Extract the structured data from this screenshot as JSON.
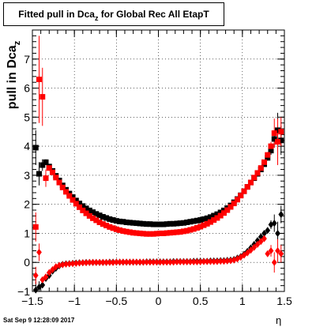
{
  "chart_data": {
    "type": "scatter",
    "title": {
      "main": "Fitted pull in Dca",
      "sub": "z",
      "rest": " for Global Rec All EtapT"
    },
    "ylabel": {
      "main": "pull in Dca",
      "sub": "z"
    },
    "xlabel": "η",
    "timestamp": "Sat Sep  9 12:28:09 2017",
    "xlim": [
      -1.5,
      1.5
    ],
    "ylim": [
      -1,
      8
    ],
    "x_ticks": [
      -1.5,
      -1,
      -0.5,
      0,
      0.5,
      1,
      1.5
    ],
    "x_tick_labels": [
      "−1.5",
      "−1",
      "−0.5",
      "0",
      "0.5",
      "1",
      "1.5"
    ],
    "y_ticks": [
      -1,
      0,
      1,
      2,
      3,
      4,
      5,
      6,
      7
    ],
    "y_tick_labels": [
      "−1",
      "0",
      "1",
      "2",
      "3",
      "4",
      "5",
      "6",
      "7"
    ],
    "grid": true,
    "colors": {
      "black_series": "#000000",
      "red_series": "#ff0000",
      "frame": "#000000",
      "grid": "#000000"
    },
    "series": [
      {
        "marker": "square",
        "color": "#000000",
        "x": [
          -1.46,
          -1.42,
          -1.38,
          -1.34,
          -1.3,
          -1.26,
          -1.22,
          -1.18,
          -1.14,
          -1.1,
          -1.06,
          -1.02,
          -0.98,
          -0.94,
          -0.9,
          -0.86,
          -0.82,
          -0.78,
          -0.74,
          -0.7,
          -0.66,
          -0.62,
          -0.58,
          -0.54,
          -0.5,
          -0.46,
          -0.42,
          -0.38,
          -0.34,
          -0.3,
          -0.26,
          -0.22,
          -0.18,
          -0.14,
          -0.1,
          -0.06,
          -0.02,
          0.02,
          0.06,
          0.1,
          0.14,
          0.18,
          0.22,
          0.26,
          0.3,
          0.34,
          0.38,
          0.42,
          0.46,
          0.5,
          0.54,
          0.58,
          0.62,
          0.66,
          0.7,
          0.74,
          0.78,
          0.82,
          0.86,
          0.9,
          0.94,
          0.98,
          1.02,
          1.06,
          1.1,
          1.14,
          1.18,
          1.22,
          1.26,
          1.3,
          1.34,
          1.38,
          1.42,
          1.46
        ],
        "y": [
          3.95,
          3.05,
          3.35,
          3.45,
          3.3,
          3.15,
          2.98,
          2.82,
          2.65,
          2.5,
          2.37,
          2.25,
          2.13,
          2.03,
          1.94,
          1.86,
          1.79,
          1.73,
          1.67,
          1.62,
          1.57,
          1.53,
          1.49,
          1.46,
          1.43,
          1.41,
          1.4,
          1.38,
          1.37,
          1.36,
          1.35,
          1.34,
          1.33,
          1.32,
          1.32,
          1.31,
          1.31,
          1.31,
          1.31,
          1.32,
          1.33,
          1.33,
          1.34,
          1.35,
          1.36,
          1.38,
          1.4,
          1.42,
          1.44,
          1.46,
          1.49,
          1.52,
          1.56,
          1.61,
          1.66,
          1.72,
          1.79,
          1.87,
          1.96,
          2.07,
          2.18,
          2.31,
          2.45,
          2.6,
          2.75,
          2.9,
          3.05,
          3.2,
          3.38,
          3.6,
          3.85,
          4.25,
          4.55,
          4.2
        ],
        "err": [
          0.6,
          0.4,
          0.2,
          0.1,
          0.05,
          0.04,
          0.03,
          0.03,
          0.03,
          0.02,
          0.02,
          0.02,
          0.02,
          0.02,
          0.02,
          0.02,
          0.02,
          0.02,
          0.02,
          0.02,
          0.02,
          0.02,
          0.02,
          0.02,
          0.02,
          0.02,
          0.02,
          0.02,
          0.02,
          0.02,
          0.02,
          0.02,
          0.02,
          0.02,
          0.02,
          0.02,
          0.02,
          0.02,
          0.02,
          0.02,
          0.02,
          0.02,
          0.02,
          0.02,
          0.02,
          0.02,
          0.02,
          0.02,
          0.02,
          0.02,
          0.02,
          0.02,
          0.02,
          0.02,
          0.02,
          0.02,
          0.02,
          0.02,
          0.02,
          0.02,
          0.02,
          0.02,
          0.03,
          0.03,
          0.03,
          0.04,
          0.05,
          0.06,
          0.08,
          0.1,
          0.15,
          0.3,
          0.6,
          0.5
        ]
      },
      {
        "marker": "square",
        "color": "#ff0000",
        "x": [
          -1.46,
          -1.42,
          -1.38,
          -1.34,
          -1.3,
          -1.26,
          -1.22,
          -1.18,
          -1.14,
          -1.1,
          -1.06,
          -1.02,
          -0.98,
          -0.94,
          -0.9,
          -0.86,
          -0.82,
          -0.78,
          -0.74,
          -0.7,
          -0.66,
          -0.62,
          -0.58,
          -0.54,
          -0.5,
          -0.46,
          -0.42,
          -0.38,
          -0.34,
          -0.3,
          -0.26,
          -0.22,
          -0.18,
          -0.14,
          -0.1,
          -0.06,
          -0.02,
          0.02,
          0.06,
          0.1,
          0.14,
          0.18,
          0.22,
          0.26,
          0.3,
          0.34,
          0.38,
          0.42,
          0.46,
          0.5,
          0.54,
          0.58,
          0.62,
          0.66,
          0.7,
          0.74,
          0.78,
          0.82,
          0.86,
          0.9,
          0.94,
          0.98,
          1.02,
          1.06,
          1.1,
          1.14,
          1.18,
          1.22,
          1.26,
          1.3,
          1.34,
          1.38,
          1.42,
          1.46
        ],
        "y": [
          1.22,
          6.3,
          5.7,
          2.9,
          3.25,
          3.1,
          2.92,
          2.75,
          2.58,
          2.43,
          2.29,
          2.15,
          2.02,
          1.9,
          1.79,
          1.69,
          1.6,
          1.52,
          1.45,
          1.38,
          1.32,
          1.27,
          1.22,
          1.18,
          1.14,
          1.11,
          1.08,
          1.06,
          1.04,
          1.02,
          1.01,
          1.0,
          0.99,
          0.98,
          0.98,
          0.98,
          0.99,
          1.0,
          1.0,
          1.01,
          1.02,
          1.03,
          1.04,
          1.05,
          1.07,
          1.09,
          1.12,
          1.15,
          1.19,
          1.23,
          1.28,
          1.33,
          1.39,
          1.46,
          1.53,
          1.61,
          1.7,
          1.8,
          1.91,
          2.03,
          2.16,
          2.3,
          2.45,
          2.6,
          2.75,
          2.92,
          3.08,
          3.25,
          3.45,
          3.7,
          4.0,
          4.45,
          4.15,
          4.5
        ],
        "err": [
          0.5,
          1.5,
          1.0,
          0.3,
          0.1,
          0.05,
          0.04,
          0.03,
          0.03,
          0.02,
          0.02,
          0.02,
          0.02,
          0.02,
          0.02,
          0.02,
          0.02,
          0.02,
          0.02,
          0.02,
          0.02,
          0.02,
          0.02,
          0.02,
          0.02,
          0.02,
          0.02,
          0.02,
          0.02,
          0.02,
          0.02,
          0.02,
          0.02,
          0.02,
          0.02,
          0.02,
          0.02,
          0.02,
          0.02,
          0.02,
          0.02,
          0.02,
          0.02,
          0.02,
          0.02,
          0.02,
          0.02,
          0.02,
          0.02,
          0.02,
          0.02,
          0.02,
          0.02,
          0.02,
          0.02,
          0.02,
          0.02,
          0.02,
          0.02,
          0.02,
          0.02,
          0.02,
          0.03,
          0.03,
          0.03,
          0.04,
          0.05,
          0.06,
          0.08,
          0.1,
          0.15,
          0.5,
          0.8,
          0.5
        ]
      },
      {
        "marker": "diamond",
        "color": "#000000",
        "x": [
          -1.46,
          -1.42,
          -1.38,
          -1.34,
          -1.3,
          -1.26,
          -1.22,
          -1.18,
          -1.14,
          -1.1,
          -1.06,
          -1.02,
          -0.98,
          -0.94,
          -0.9,
          -0.86,
          -0.82,
          -0.78,
          -0.74,
          -0.7,
          -0.66,
          -0.62,
          -0.58,
          -0.54,
          -0.5,
          -0.46,
          -0.42,
          -0.38,
          -0.34,
          -0.3,
          -0.26,
          -0.22,
          -0.18,
          -0.14,
          -0.1,
          -0.06,
          -0.02,
          0.02,
          0.06,
          0.1,
          0.14,
          0.18,
          0.22,
          0.26,
          0.3,
          0.34,
          0.38,
          0.42,
          0.46,
          0.5,
          0.54,
          0.58,
          0.62,
          0.66,
          0.7,
          0.74,
          0.78,
          0.82,
          0.86,
          0.9,
          0.94,
          0.98,
          1.02,
          1.06,
          1.1,
          1.14,
          1.18,
          1.22,
          1.26,
          1.3,
          1.34,
          1.38,
          1.42,
          1.46
        ],
        "y": [
          -0.95,
          -0.85,
          -0.78,
          -0.55,
          -0.45,
          -0.3,
          -0.2,
          -0.12,
          -0.07,
          -0.05,
          -0.04,
          -0.03,
          -0.02,
          -0.01,
          -0.01,
          0.0,
          0.0,
          0.0,
          0.0,
          0.0,
          0.0,
          0.0,
          0.01,
          0.01,
          0.01,
          0.01,
          0.01,
          0.01,
          0.01,
          0.01,
          0.01,
          0.01,
          0.01,
          0.02,
          0.02,
          0.02,
          0.02,
          0.02,
          0.02,
          0.02,
          0.02,
          0.03,
          0.03,
          0.03,
          0.03,
          0.03,
          0.03,
          0.04,
          0.04,
          0.04,
          0.04,
          0.04,
          0.05,
          0.05,
          0.05,
          0.06,
          0.06,
          0.07,
          0.08,
          0.1,
          0.15,
          0.2,
          0.28,
          0.38,
          0.5,
          0.62,
          0.75,
          0.88,
          1.0,
          1.1,
          1.3,
          1.35,
          1.0,
          1.65
        ],
        "err": [
          0.3,
          0.2,
          0.1,
          0.05,
          0.03,
          0.03,
          0.02,
          0.02,
          0.02,
          0.02,
          0.02,
          0.02,
          0.02,
          0.02,
          0.02,
          0.02,
          0.02,
          0.02,
          0.02,
          0.02,
          0.02,
          0.02,
          0.02,
          0.02,
          0.02,
          0.02,
          0.02,
          0.02,
          0.02,
          0.02,
          0.02,
          0.02,
          0.02,
          0.02,
          0.02,
          0.02,
          0.02,
          0.02,
          0.02,
          0.02,
          0.02,
          0.02,
          0.02,
          0.02,
          0.02,
          0.02,
          0.02,
          0.02,
          0.02,
          0.02,
          0.02,
          0.02,
          0.02,
          0.02,
          0.02,
          0.02,
          0.02,
          0.02,
          0.02,
          0.02,
          0.02,
          0.02,
          0.02,
          0.03,
          0.03,
          0.03,
          0.04,
          0.05,
          0.06,
          0.08,
          0.15,
          0.3,
          0.4,
          0.3
        ]
      },
      {
        "marker": "diamond",
        "color": "#ff0000",
        "x": [
          -1.46,
          -1.42,
          -1.38,
          -1.34,
          -1.3,
          -1.26,
          -1.22,
          -1.18,
          -1.14,
          -1.1,
          -1.06,
          -1.02,
          -0.98,
          -0.94,
          -0.9,
          -0.86,
          -0.82,
          -0.78,
          -0.74,
          -0.7,
          -0.66,
          -0.62,
          -0.58,
          -0.54,
          -0.5,
          -0.46,
          -0.42,
          -0.38,
          -0.34,
          -0.3,
          -0.26,
          -0.22,
          -0.18,
          -0.14,
          -0.1,
          -0.06,
          -0.02,
          0.02,
          0.06,
          0.1,
          0.14,
          0.18,
          0.22,
          0.26,
          0.3,
          0.34,
          0.38,
          0.42,
          0.46,
          0.5,
          0.54,
          0.58,
          0.62,
          0.66,
          0.7,
          0.74,
          0.78,
          0.82,
          0.86,
          0.9,
          0.94,
          0.98,
          1.02,
          1.06,
          1.1,
          1.14,
          1.18,
          1.22,
          1.26,
          1.3,
          1.34,
          1.38,
          1.42,
          1.46
        ],
        "y": [
          -0.45,
          0.35,
          -0.6,
          -0.5,
          -0.35,
          -0.25,
          -0.15,
          -0.1,
          -0.08,
          -0.06,
          -0.05,
          -0.04,
          -0.03,
          -0.02,
          -0.01,
          -0.01,
          0.0,
          0.0,
          0.0,
          0.0,
          0.0,
          0.0,
          0.0,
          0.0,
          0.01,
          0.01,
          0.01,
          0.01,
          0.01,
          0.01,
          0.01,
          0.01,
          0.01,
          0.01,
          0.01,
          0.01,
          0.01,
          0.01,
          0.01,
          0.01,
          0.01,
          0.01,
          0.02,
          0.02,
          0.02,
          0.02,
          0.02,
          0.02,
          0.02,
          0.02,
          0.03,
          0.03,
          0.03,
          0.03,
          0.03,
          0.04,
          0.04,
          0.05,
          0.06,
          0.08,
          0.12,
          0.18,
          0.25,
          0.33,
          0.42,
          0.52,
          0.62,
          0.72,
          0.82,
          0.3,
          0.4,
          0.0,
          0.4,
          0.3
        ],
        "err": [
          0.3,
          0.3,
          0.1,
          0.05,
          0.03,
          0.03,
          0.02,
          0.02,
          0.02,
          0.02,
          0.02,
          0.02,
          0.02,
          0.02,
          0.02,
          0.02,
          0.02,
          0.02,
          0.02,
          0.02,
          0.02,
          0.02,
          0.02,
          0.02,
          0.02,
          0.02,
          0.02,
          0.02,
          0.02,
          0.02,
          0.02,
          0.02,
          0.02,
          0.02,
          0.02,
          0.02,
          0.02,
          0.02,
          0.02,
          0.02,
          0.02,
          0.02,
          0.02,
          0.02,
          0.02,
          0.02,
          0.02,
          0.02,
          0.02,
          0.02,
          0.02,
          0.02,
          0.02,
          0.02,
          0.02,
          0.02,
          0.02,
          0.02,
          0.02,
          0.02,
          0.02,
          0.02,
          0.02,
          0.03,
          0.03,
          0.03,
          0.04,
          0.05,
          0.06,
          0.08,
          0.2,
          0.35,
          0.4,
          0.3
        ]
      }
    ]
  }
}
